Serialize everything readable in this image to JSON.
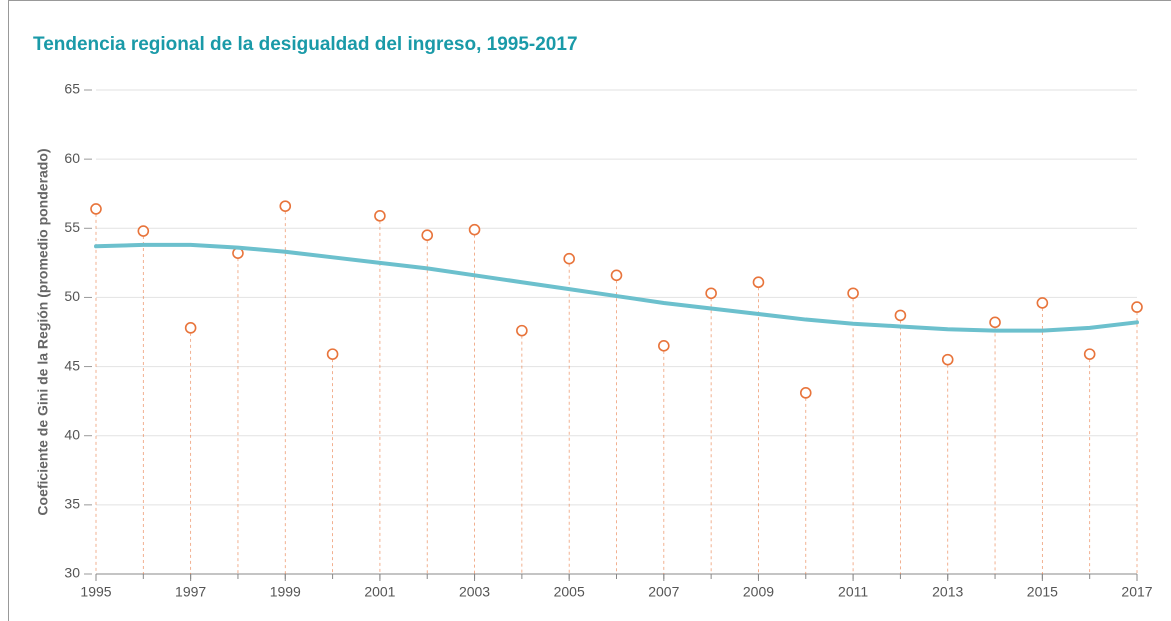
{
  "chart_data": {
    "type": "scatter",
    "title": "Tendencia regional de la desigualdad del ingreso, 1995-2017",
    "y_label": "Coeficiente de Gini de la Región (promedio ponderado)",
    "x": [
      1995,
      1996,
      1997,
      1998,
      1999,
      2000,
      2001,
      2002,
      2003,
      2004,
      2005,
      2006,
      2007,
      2008,
      2009,
      2010,
      2011,
      2012,
      2013,
      2014,
      2015,
      2016,
      2017
    ],
    "series": [
      {
        "type": "scatter",
        "color": "#e8743b",
        "drop_lines": true,
        "values": [
          56.4,
          54.8,
          47.8,
          53.2,
          56.6,
          45.9,
          55.9,
          54.5,
          54.9,
          47.6,
          52.8,
          51.6,
          46.5,
          50.3,
          51.1,
          43.1,
          50.3,
          48.7,
          45.5,
          48.2,
          49.6,
          45.9,
          49.3
        ]
      },
      {
        "type": "line",
        "color": "#6cc0cd",
        "values": [
          53.7,
          53.8,
          53.8,
          53.6,
          53.3,
          52.9,
          52.5,
          52.1,
          51.6,
          51.1,
          50.6,
          50.1,
          49.6,
          49.2,
          48.8,
          48.4,
          48.1,
          47.9,
          47.7,
          47.6,
          47.6,
          47.8,
          48.2
        ]
      }
    ],
    "xlim": [
      1995,
      2017
    ],
    "xticks": [
      1995,
      1997,
      1999,
      2001,
      2003,
      2005,
      2007,
      2009,
      2011,
      2013,
      2015,
      2017
    ],
    "ylim": [
      30,
      65
    ],
    "yticks": [
      30,
      35,
      40,
      45,
      50,
      55,
      60,
      65
    ],
    "grid": true
  }
}
